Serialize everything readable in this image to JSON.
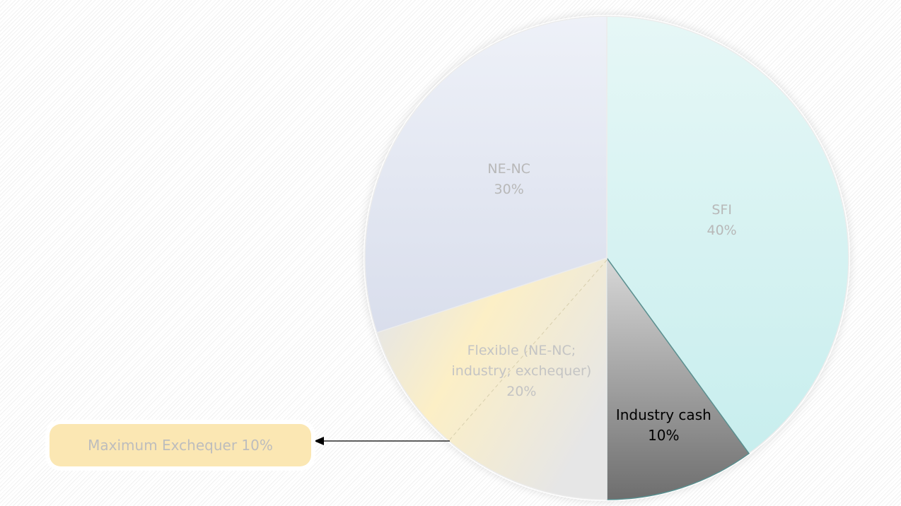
{
  "chart_data": {
    "type": "pie",
    "categories": [
      "SFI",
      "Industry cash",
      "Flexible (NE-NC; industry; exchequer)",
      "NE-NC"
    ],
    "values": [
      40,
      10,
      20,
      30
    ],
    "value_labels": [
      "40%",
      "10%",
      "20%",
      "30%"
    ],
    "colors": [
      "#d2f1f1",
      "#a9a9a9",
      "#eeead8",
      "#e2e6f2"
    ],
    "label_colors": [
      "#b8b8b8",
      "#000000",
      "#c4c4c4",
      "#b8b8b8"
    ],
    "annotation": "Maximum Exchequer 10%"
  }
}
